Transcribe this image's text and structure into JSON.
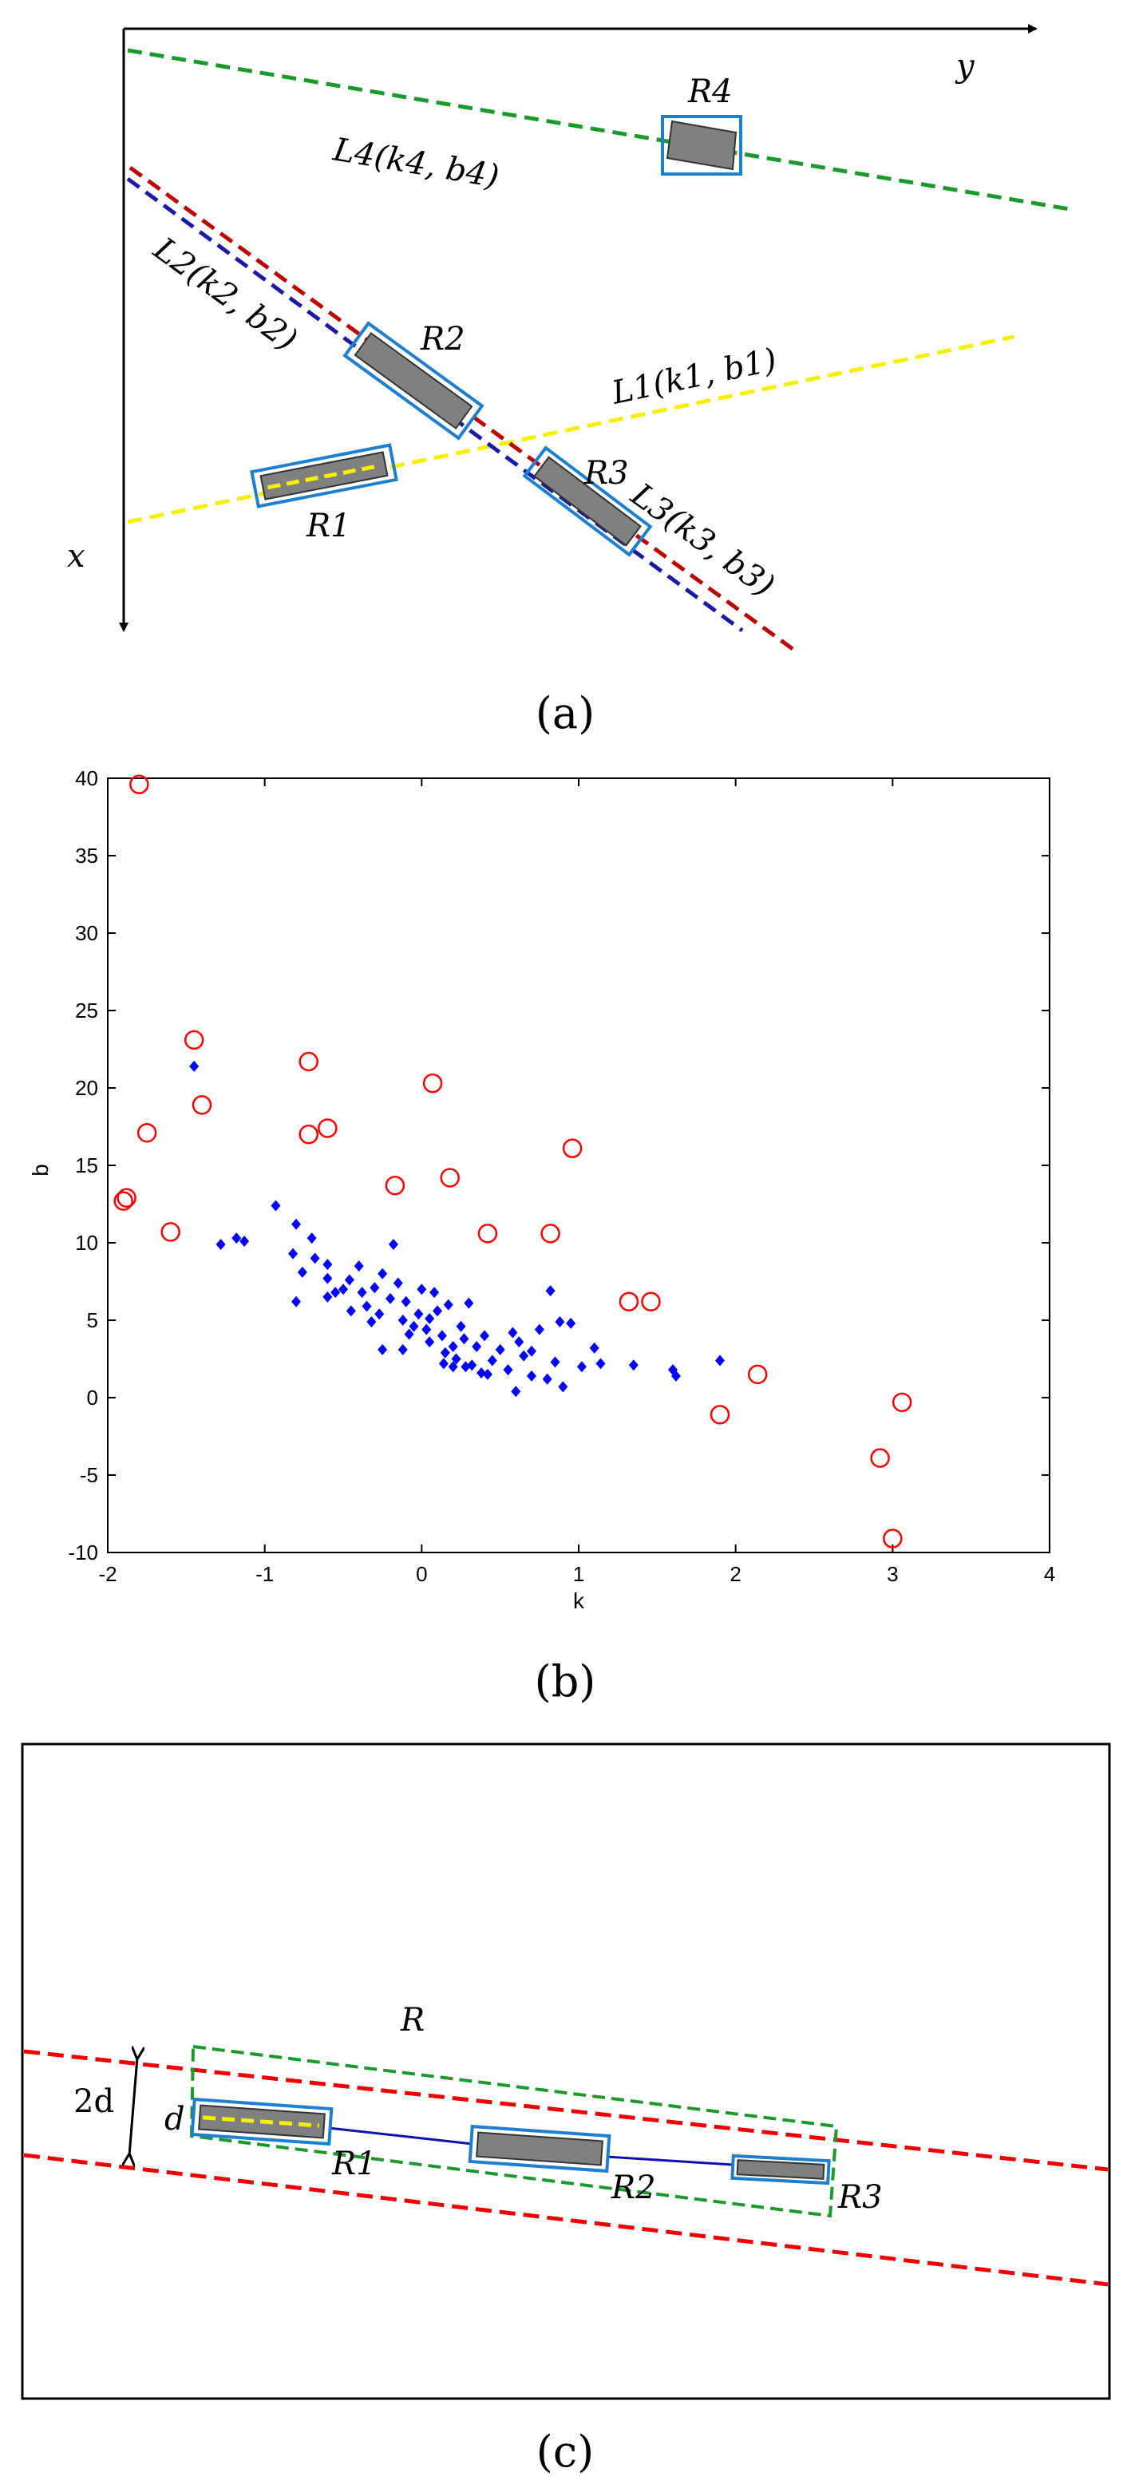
{
  "panel_a": {
    "caption": "(a)",
    "axis_y_label": "y",
    "axis_x_label": "x",
    "lines": [
      {
        "label": "L1(k1, b1)",
        "color": "#f5f000"
      },
      {
        "label": "L2(k2, b2)",
        "color": "#1a1aa6"
      },
      {
        "label": "L3(k3, b3)",
        "color": "#c00000"
      },
      {
        "label": "L4(k4, b4)",
        "color": "#1a9a2a"
      }
    ],
    "regions": [
      "R1",
      "R2",
      "R3",
      "R4"
    ],
    "region_fill": "#808080",
    "region_border": "#1e7fd0"
  },
  "panel_b": {
    "caption": "(b)",
    "chart_data": {
      "type": "scatter",
      "xlabel": "k",
      "ylabel": "b",
      "xlim": [
        -2,
        4
      ],
      "ylim": [
        -10,
        40
      ],
      "xticks": [
        "-2",
        "-1",
        "0",
        "1",
        "2",
        "3",
        "4"
      ],
      "yticks": [
        "40",
        "35",
        "30",
        "25",
        "20",
        "15",
        "10",
        "5",
        "0",
        "-5",
        "-10"
      ],
      "grid": false,
      "series": [
        {
          "marker": "circle-open",
          "color": "#ff0000",
          "points": [
            [
              -1.8,
              39.6
            ],
            [
              -1.45,
              23.1
            ],
            [
              -1.4,
              18.9
            ],
            [
              -1.75,
              17.1
            ],
            [
              -1.9,
              12.7
            ],
            [
              -1.88,
              12.9
            ],
            [
              -1.6,
              10.7
            ],
            [
              -0.72,
              21.7
            ],
            [
              -0.72,
              17.0
            ],
            [
              -0.6,
              17.4
            ],
            [
              -0.17,
              13.7
            ],
            [
              0.07,
              20.3
            ],
            [
              0.18,
              14.2
            ],
            [
              0.42,
              10.6
            ],
            [
              0.82,
              10.6
            ],
            [
              0.96,
              16.1
            ],
            [
              1.32,
              6.2
            ],
            [
              1.46,
              6.2
            ],
            [
              2.14,
              1.5
            ],
            [
              1.9,
              -1.1
            ],
            [
              2.92,
              -3.9
            ],
            [
              3.06,
              -0.3
            ],
            [
              3.0,
              -9.1
            ]
          ]
        },
        {
          "marker": "diamond-filled",
          "color": "#0000ff",
          "points": [
            [
              -1.45,
              21.4
            ],
            [
              -1.28,
              9.9
            ],
            [
              -1.18,
              10.3
            ],
            [
              -1.13,
              10.1
            ],
            [
              -0.8,
              11.2
            ],
            [
              -0.82,
              9.3
            ],
            [
              -0.76,
              8.1
            ],
            [
              -0.7,
              10.3
            ],
            [
              -0.68,
              9.0
            ],
            [
              -0.8,
              6.2
            ],
            [
              -0.6,
              7.7
            ],
            [
              -0.55,
              6.8
            ],
            [
              -0.5,
              7.0
            ],
            [
              -0.46,
              7.6
            ],
            [
              -0.4,
              8.5
            ],
            [
              -0.38,
              6.8
            ],
            [
              -0.35,
              5.9
            ],
            [
              -0.3,
              7.1
            ],
            [
              -0.27,
              5.4
            ],
            [
              -0.25,
              8.0
            ],
            [
              -0.2,
              6.4
            ],
            [
              -0.15,
              7.4
            ],
            [
              -0.12,
              5.0
            ],
            [
              -0.1,
              6.2
            ],
            [
              -0.08,
              4.1
            ],
            [
              -0.05,
              4.6
            ],
            [
              -0.02,
              5.4
            ],
            [
              0.0,
              7.0
            ],
            [
              0.03,
              4.4
            ],
            [
              0.05,
              3.6
            ],
            [
              0.08,
              6.8
            ],
            [
              0.1,
              5.6
            ],
            [
              0.13,
              4.0
            ],
            [
              0.15,
              2.9
            ],
            [
              0.17,
              6.0
            ],
            [
              0.2,
              3.3
            ],
            [
              0.22,
              2.5
            ],
            [
              0.25,
              4.6
            ],
            [
              0.27,
              3.8
            ],
            [
              0.3,
              6.1
            ],
            [
              0.32,
              2.1
            ],
            [
              0.35,
              3.3
            ],
            [
              0.38,
              1.6
            ],
            [
              0.4,
              4.0
            ],
            [
              0.45,
              2.4
            ],
            [
              0.5,
              3.1
            ],
            [
              0.55,
              1.8
            ],
            [
              0.6,
              0.4
            ],
            [
              0.62,
              3.6
            ],
            [
              0.65,
              2.7
            ],
            [
              0.7,
              1.4
            ],
            [
              0.75,
              4.4
            ],
            [
              0.8,
              1.2
            ],
            [
              0.82,
              6.9
            ],
            [
              0.85,
              2.3
            ],
            [
              0.9,
              0.7
            ],
            [
              -0.93,
              12.4
            ],
            [
              -0.6,
              8.6
            ],
            [
              0.95,
              4.8
            ],
            [
              1.02,
              2.0
            ],
            [
              1.1,
              3.2
            ],
            [
              1.14,
              2.2
            ],
            [
              1.35,
              2.1
            ],
            [
              1.6,
              1.8
            ],
            [
              1.62,
              1.4
            ],
            [
              1.9,
              2.4
            ],
            [
              -0.18,
              9.9
            ],
            [
              -0.25,
              3.1
            ],
            [
              0.28,
              2.0
            ],
            [
              0.58,
              4.2
            ],
            [
              0.14,
              2.2
            ],
            [
              -0.45,
              5.6
            ],
            [
              -0.32,
              4.9
            ],
            [
              0.7,
              3.0
            ],
            [
              0.42,
              1.5
            ],
            [
              -0.12,
              3.1
            ],
            [
              0.88,
              4.9
            ],
            [
              0.05,
              5.1
            ],
            [
              -0.6,
              6.5
            ],
            [
              0.2,
              2.0
            ]
          ]
        }
      ]
    }
  },
  "panel_c": {
    "caption": "(c)",
    "label_2d": "2d",
    "label_d": "d",
    "label_R": "R",
    "regions": [
      "R1",
      "R2",
      "R3"
    ],
    "colors": {
      "boundary": "#ee0000",
      "box": "#1a9a2a",
      "link": "#1010b0",
      "axis": "#f5f000"
    }
  }
}
